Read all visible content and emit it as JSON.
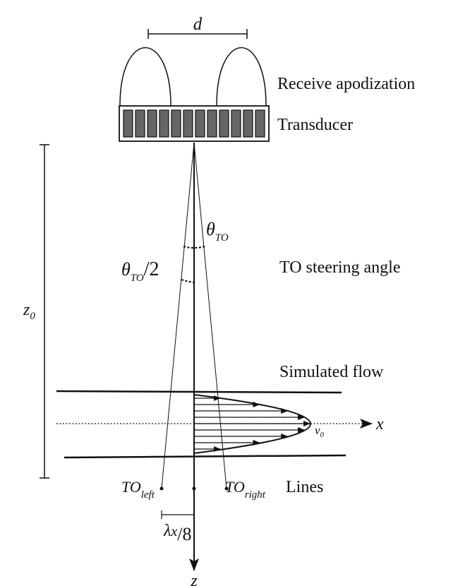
{
  "labels": {
    "d": "d",
    "receive_apodization": "Receive apodization",
    "transducer": "Transducer",
    "z0": "z",
    "z0_sub": "0",
    "theta": "θ",
    "theta_sub": "TO",
    "theta_half_slash": "/2",
    "to_steering_angle": "TO steering angle",
    "simulated_flow": "Simulated flow",
    "x_axis": "x",
    "v0": "v",
    "v0_sub": "0",
    "to_left": "TO",
    "to_left_sub": "left",
    "to_right": "TO",
    "to_right_sub": "right",
    "lines": "Lines",
    "lambda": "λ",
    "lambda_x": "x",
    "lambda_slash": "/8",
    "z_axis": "z"
  },
  "transducer": {
    "element_count": 12,
    "element_fill": "#666666"
  },
  "flow": {
    "arrow_count": 9
  }
}
